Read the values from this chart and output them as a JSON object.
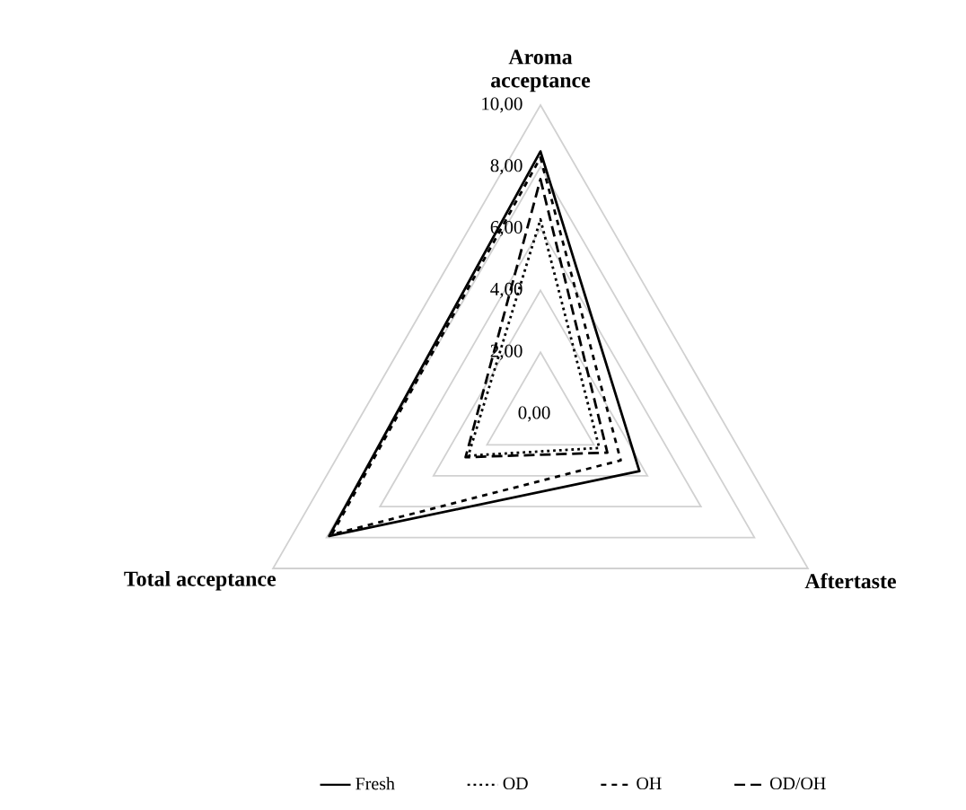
{
  "chart_data": {
    "type": "radar",
    "categories": [
      "Aroma acceptance",
      "Aftertaste",
      "Total acceptance"
    ],
    "ylim": [
      0,
      10
    ],
    "yticks": [
      {
        "value": 0,
        "label": "0,00"
      },
      {
        "value": 2,
        "label": "2,00"
      },
      {
        "value": 4,
        "label": "4,00"
      },
      {
        "value": 6,
        "label": "6,00"
      },
      {
        "value": 8,
        "label": "8,00"
      },
      {
        "value": 10,
        "label": "10,00"
      }
    ],
    "grid": true,
    "legend": "bottom",
    "series": [
      {
        "name": "Fresh",
        "color": "#000000",
        "line_style": "solid",
        "values": [
          8.5,
          3.7,
          7.9
        ]
      },
      {
        "name": "OD",
        "color": "#000000",
        "line_style": "dotted",
        "values": [
          6.3,
          2.2,
          2.7
        ]
      },
      {
        "name": "OH",
        "color": "#000000",
        "line_style": "dashed",
        "values": [
          8.3,
          3.0,
          7.8
        ]
      },
      {
        "name": "OD/OH",
        "color": "#000000",
        "line_style": "dashed",
        "values": [
          7.6,
          2.5,
          2.8
        ]
      }
    ]
  }
}
